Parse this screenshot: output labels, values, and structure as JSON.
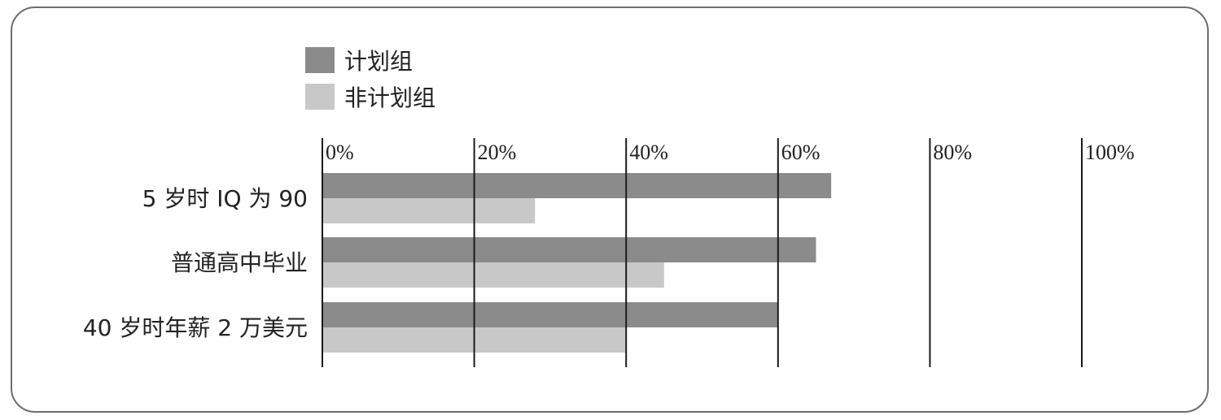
{
  "chart_data": {
    "type": "bar",
    "orientation": "horizontal",
    "categories": [
      "5 岁时 IQ 为 90",
      "普通高中毕业",
      "40 岁时年薪 2 万美元"
    ],
    "series": [
      {
        "name": "计划组",
        "color": "#8c8b8b",
        "values": [
          67,
          65,
          60
        ]
      },
      {
        "name": "非计划组",
        "color": "#c8c8c8",
        "values": [
          28,
          45,
          40
        ]
      }
    ],
    "xlim": [
      0,
      100
    ],
    "ticks": [
      0,
      20,
      40,
      60,
      80,
      100
    ],
    "tick_labels": [
      "0%",
      "20%",
      "40%",
      "60%",
      "80%",
      "100%"
    ],
    "grid": true,
    "legend_position": "top-left"
  }
}
